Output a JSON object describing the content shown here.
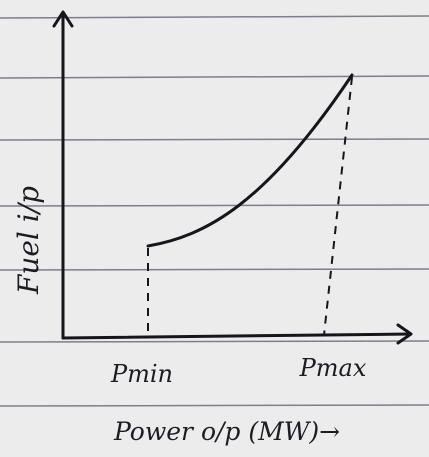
{
  "y_axis_label": "Fuel i/p",
  "x_ticks": [
    "Pmin",
    "Pmax"
  ],
  "x_axis_label": "Power o/p (MW)→"
}
